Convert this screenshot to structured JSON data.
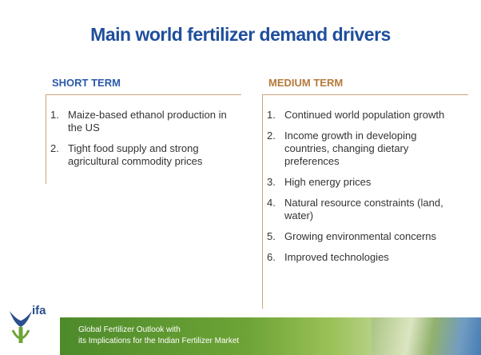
{
  "header": {
    "title": "Main world fertilizer demand drivers"
  },
  "columns": [
    {
      "heading": "SHORT TERM",
      "items": [
        {
          "number": "1.",
          "text": "Maize-based ethanol production in the US"
        },
        {
          "number": "2.",
          "text": "Tight food supply and strong agricultural commodity prices"
        }
      ]
    },
    {
      "heading": "MEDIUM TERM",
      "items": [
        {
          "number": "1.",
          "text": "Continued world population growth"
        },
        {
          "number": "2.",
          "text": "Income growth in developing countries, changing dietary preferences"
        },
        {
          "number": "3.",
          "text": "High energy prices"
        },
        {
          "number": "4.",
          "text": "Natural resource constraints (land, water)"
        },
        {
          "number": "5.",
          "text": "Growing environmental concerns"
        },
        {
          "number": "6.",
          "text": "Improved technologies"
        }
      ]
    }
  ],
  "footer": {
    "logo": "ifa",
    "lines": [
      "Global Fertilizer Outlook with",
      "its Implications for the Indian Fertilizer Market"
    ]
  }
}
